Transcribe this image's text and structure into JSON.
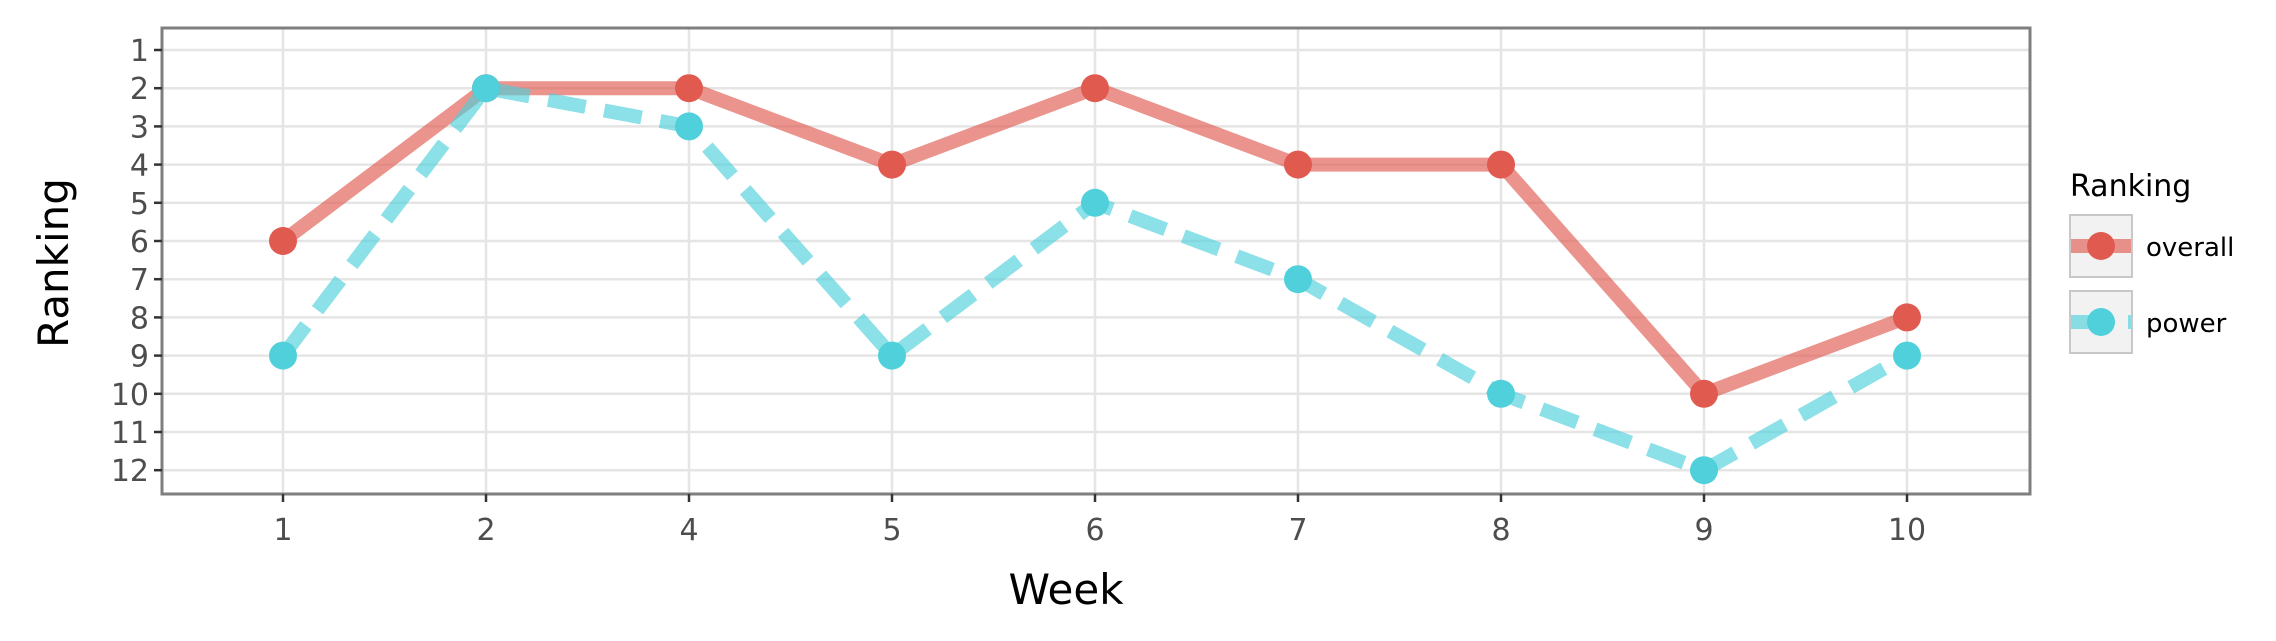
{
  "chart_data": {
    "type": "line",
    "xlabel": "Week",
    "ylabel": "Ranking",
    "categories": [
      "1",
      "2",
      "4",
      "5",
      "6",
      "7",
      "8",
      "9",
      "10"
    ],
    "y_ticks": [
      "1",
      "2",
      "3",
      "4",
      "5",
      "6",
      "7",
      "8",
      "9",
      "10",
      "11",
      "12"
    ],
    "ylim": [
      1,
      12
    ],
    "y_reversed": true,
    "grid": true,
    "legend": {
      "title": "Ranking",
      "placement": "right"
    },
    "series": [
      {
        "name": "overall",
        "values": [
          6,
          2,
          2,
          4,
          2,
          4,
          4,
          10,
          8
        ],
        "color": "#e05a50",
        "line_style": "solid"
      },
      {
        "name": "power",
        "values": [
          9,
          2,
          3,
          9,
          5,
          7,
          10,
          12,
          9
        ],
        "color": "#4fd0da",
        "line_style": "dashed"
      }
    ]
  }
}
